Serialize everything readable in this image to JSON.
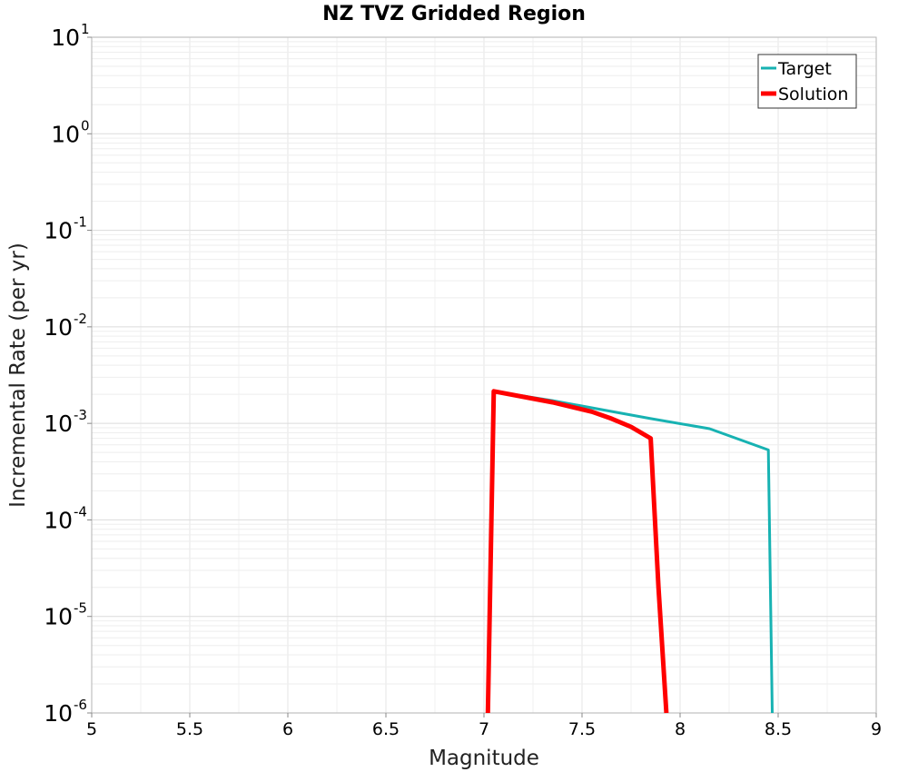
{
  "chart_data": {
    "type": "line",
    "title": "NZ TVZ Gridded Region",
    "xlabel": "Magnitude",
    "ylabel": "Incremental Rate (per yr)",
    "xlim": [
      5,
      9
    ],
    "ylim_log10": [
      -6,
      1
    ],
    "yscale": "log",
    "grid": true,
    "legend_position": "top-right",
    "x_ticks": [
      "5",
      "5.5",
      "6",
      "6.5",
      "7",
      "7.5",
      "8",
      "8.5",
      "9"
    ],
    "x_tick_values": [
      5,
      5.5,
      6,
      6.5,
      7,
      7.5,
      8,
      8.5,
      9
    ],
    "y_ticks": [
      {
        "base": "10",
        "exp": "1",
        "value": 1
      },
      {
        "base": "10",
        "exp": "0",
        "value": 0
      },
      {
        "base": "10",
        "exp": "-1",
        "value": -1
      },
      {
        "base": "10",
        "exp": "-2",
        "value": -2
      },
      {
        "base": "10",
        "exp": "-3",
        "value": -3
      },
      {
        "base": "10",
        "exp": "-4",
        "value": -4
      },
      {
        "base": "10",
        "exp": "-5",
        "value": -5
      },
      {
        "base": "10",
        "exp": "-6",
        "value": -6
      }
    ],
    "series": [
      {
        "name": "Target",
        "color": "#17b2b2",
        "width": 3,
        "x": [
          7.05,
          7.35,
          7.65,
          7.85,
          8.15,
          8.45,
          8.47
        ],
        "y": [
          0.00215,
          0.00172,
          0.00133,
          0.00112,
          0.00088,
          0.00053,
          1e-06
        ]
      },
      {
        "name": "Solution",
        "color": "#ff0000",
        "width": 5,
        "x": [
          7.02,
          7.05,
          7.35,
          7.55,
          7.65,
          7.75,
          7.85,
          7.89,
          7.93
        ],
        "y": [
          1e-06,
          0.00215,
          0.00165,
          0.00132,
          0.00112,
          0.00092,
          0.0007,
          2e-05,
          1e-06
        ]
      }
    ]
  }
}
